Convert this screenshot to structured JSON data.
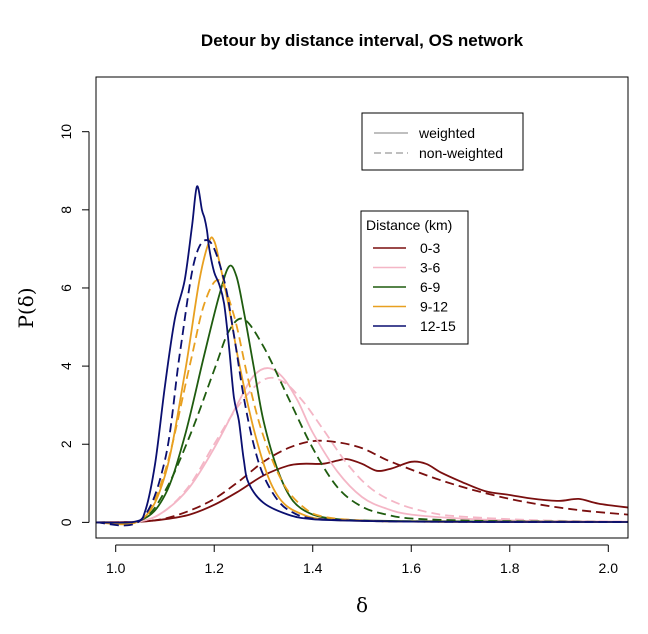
{
  "chart_data": {
    "type": "line",
    "title": "Detour by distance interval, OS network",
    "xlabel": "δ",
    "ylabel": "P(δ)",
    "xlim": [
      0.96,
      2.04
    ],
    "ylim": [
      -0.4,
      11.4
    ],
    "x_ticks": [
      1.0,
      1.2,
      1.4,
      1.6,
      1.8,
      2.0
    ],
    "x_tick_labels": [
      "1.0",
      "1.2",
      "1.4",
      "1.6",
      "1.8",
      "2.0"
    ],
    "y_ticks": [
      0,
      2,
      4,
      6,
      8,
      10
    ],
    "y_tick_labels": [
      "0",
      "2",
      "4",
      "6",
      "8",
      "10"
    ],
    "style_legend": {
      "entries": [
        {
          "label": "weighted",
          "dash": "solid",
          "color": "#aaaaaa"
        },
        {
          "label": "non-weighted",
          "dash": "dashed",
          "color": "#aaaaaa"
        }
      ]
    },
    "distance_legend": {
      "title": "Distance (km)",
      "entries": [
        {
          "label": "0-3",
          "color": "#7a0f0f"
        },
        {
          "label": "3-6",
          "color": "#f4b6c6"
        },
        {
          "label": "6-9",
          "color": "#1f5c0f"
        },
        {
          "label": "9-12",
          "color": "#e8a020"
        },
        {
          "label": "12-15",
          "color": "#0a0f70"
        }
      ]
    },
    "series": [
      {
        "name": "0-3 weighted",
        "color": "#7a0f0f",
        "dash": "solid",
        "x": [
          0.96,
          1.05,
          1.1,
          1.15,
          1.2,
          1.25,
          1.3,
          1.35,
          1.38,
          1.42,
          1.45,
          1.47,
          1.5,
          1.53,
          1.56,
          1.6,
          1.63,
          1.66,
          1.7,
          1.75,
          1.8,
          1.85,
          1.9,
          1.94,
          1.98,
          2.04
        ],
        "y": [
          0,
          0.02,
          0.08,
          0.2,
          0.45,
          0.8,
          1.2,
          1.45,
          1.5,
          1.5,
          1.58,
          1.62,
          1.5,
          1.32,
          1.38,
          1.55,
          1.5,
          1.28,
          1.05,
          0.8,
          0.7,
          0.6,
          0.55,
          0.6,
          0.48,
          0.38
        ]
      },
      {
        "name": "0-3 non-weighted",
        "color": "#7a0f0f",
        "dash": "dashed",
        "x": [
          0.96,
          1.05,
          1.1,
          1.15,
          1.2,
          1.25,
          1.3,
          1.35,
          1.4,
          1.45,
          1.5,
          1.55,
          1.6,
          1.65,
          1.7,
          1.75,
          1.8,
          1.85,
          1.9,
          1.95,
          2.0,
          2.04
        ],
        "y": [
          0,
          0.02,
          0.1,
          0.3,
          0.6,
          1.05,
          1.55,
          1.9,
          2.08,
          2.05,
          1.9,
          1.6,
          1.35,
          1.12,
          0.92,
          0.75,
          0.6,
          0.48,
          0.38,
          0.3,
          0.24,
          0.2
        ]
      },
      {
        "name": "3-6 weighted",
        "color": "#f4b6c6",
        "dash": "solid",
        "x": [
          0.96,
          1.05,
          1.1,
          1.15,
          1.2,
          1.25,
          1.28,
          1.31,
          1.34,
          1.37,
          1.4,
          1.45,
          1.5,
          1.55,
          1.6,
          1.7,
          1.8,
          1.9,
          2.04
        ],
        "y": [
          0,
          0.03,
          0.3,
          0.9,
          1.9,
          3.1,
          3.75,
          3.95,
          3.7,
          3.1,
          2.3,
          1.3,
          0.65,
          0.35,
          0.2,
          0.1,
          0.05,
          0.03,
          0.02
        ]
      },
      {
        "name": "3-6 non-weighted",
        "color": "#f4b6c6",
        "dash": "dashed",
        "x": [
          0.96,
          1.05,
          1.1,
          1.15,
          1.2,
          1.25,
          1.3,
          1.34,
          1.38,
          1.42,
          1.47,
          1.52,
          1.58,
          1.65,
          1.7,
          1.8,
          1.9,
          2.04
        ],
        "y": [
          0,
          0.03,
          0.3,
          0.95,
          2.0,
          3.0,
          3.65,
          3.6,
          3.1,
          2.4,
          1.5,
          0.85,
          0.45,
          0.22,
          0.15,
          0.08,
          0.04,
          0.02
        ]
      },
      {
        "name": "6-9 weighted",
        "color": "#1f5c0f",
        "dash": "solid",
        "x": [
          0.96,
          1.05,
          1.1,
          1.14,
          1.18,
          1.21,
          1.23,
          1.245,
          1.26,
          1.28,
          1.3,
          1.33,
          1.36,
          1.4,
          1.45,
          1.5,
          1.6,
          1.8,
          2.04
        ],
        "y": [
          0,
          0.05,
          0.7,
          2.2,
          4.3,
          5.8,
          6.55,
          6.3,
          5.4,
          4.0,
          2.6,
          1.3,
          0.55,
          0.2,
          0.08,
          0.05,
          0.03,
          0.02,
          0.01
        ]
      },
      {
        "name": "6-9 non-weighted",
        "color": "#1f5c0f",
        "dash": "dashed",
        "x": [
          0.96,
          1.05,
          1.1,
          1.15,
          1.2,
          1.23,
          1.26,
          1.3,
          1.35,
          1.4,
          1.45,
          1.5,
          1.55,
          1.6,
          1.7,
          1.8,
          2.04
        ],
        "y": [
          0,
          0.05,
          0.8,
          2.2,
          3.9,
          4.9,
          5.2,
          4.5,
          3.2,
          1.9,
          0.9,
          0.4,
          0.2,
          0.1,
          0.05,
          0.03,
          0.01
        ]
      },
      {
        "name": "9-12 weighted",
        "color": "#e8a020",
        "dash": "solid",
        "x": [
          0.96,
          1.05,
          1.1,
          1.14,
          1.17,
          1.19,
          1.2,
          1.21,
          1.23,
          1.25,
          1.28,
          1.31,
          1.34,
          1.38,
          1.42,
          1.5,
          1.6,
          1.8,
          2.04
        ],
        "y": [
          0,
          0.05,
          1.2,
          3.8,
          6.2,
          7.2,
          7.2,
          6.7,
          5.5,
          4.1,
          2.4,
          1.15,
          0.5,
          0.2,
          0.08,
          0.04,
          0.02,
          0.01,
          0.01
        ]
      },
      {
        "name": "9-12 non-weighted",
        "color": "#e8a020",
        "dash": "dashed",
        "x": [
          0.96,
          1.05,
          1.1,
          1.15,
          1.18,
          1.21,
          1.24,
          1.27,
          1.3,
          1.34,
          1.38,
          1.42,
          1.5,
          1.6,
          1.8,
          2.04
        ],
        "y": [
          0,
          0.05,
          1.3,
          4.0,
          5.6,
          6.2,
          5.3,
          3.6,
          2.2,
          1.0,
          0.4,
          0.15,
          0.05,
          0.02,
          0.01,
          0.01
        ]
      },
      {
        "name": "12-15 weighted",
        "color": "#0a0f70",
        "dash": "solid",
        "x": [
          0.96,
          1.04,
          1.06,
          1.08,
          1.1,
          1.12,
          1.14,
          1.155,
          1.165,
          1.175,
          1.18,
          1.185,
          1.19,
          1.2,
          1.21,
          1.22,
          1.23,
          1.24,
          1.25,
          1.26,
          1.27,
          1.3,
          1.35,
          1.4,
          1.5,
          1.6,
          1.8,
          2.04
        ],
        "y": [
          0,
          0.02,
          0.3,
          1.5,
          3.5,
          5.2,
          6.2,
          7.6,
          8.6,
          8.0,
          7.8,
          7.5,
          7.0,
          6.4,
          6.1,
          5.6,
          4.5,
          3.2,
          2.6,
          1.6,
          1.0,
          0.5,
          0.2,
          0.08,
          0.04,
          0.02,
          0.01,
          0.01
        ]
      },
      {
        "name": "12-15 non-weighted",
        "color": "#0a0f70",
        "dash": "dashed",
        "x": [
          0.96,
          1.05,
          1.1,
          1.13,
          1.16,
          1.19,
          1.22,
          1.24,
          1.26,
          1.28,
          1.3,
          1.33,
          1.36,
          1.4,
          1.5,
          1.6,
          1.8,
          2.04
        ],
        "y": [
          0,
          0.05,
          1.6,
          4.3,
          6.7,
          7.2,
          6.2,
          4.8,
          3.2,
          2.0,
          1.2,
          0.55,
          0.25,
          0.1,
          0.04,
          0.02,
          0.01,
          0.01
        ]
      }
    ]
  }
}
